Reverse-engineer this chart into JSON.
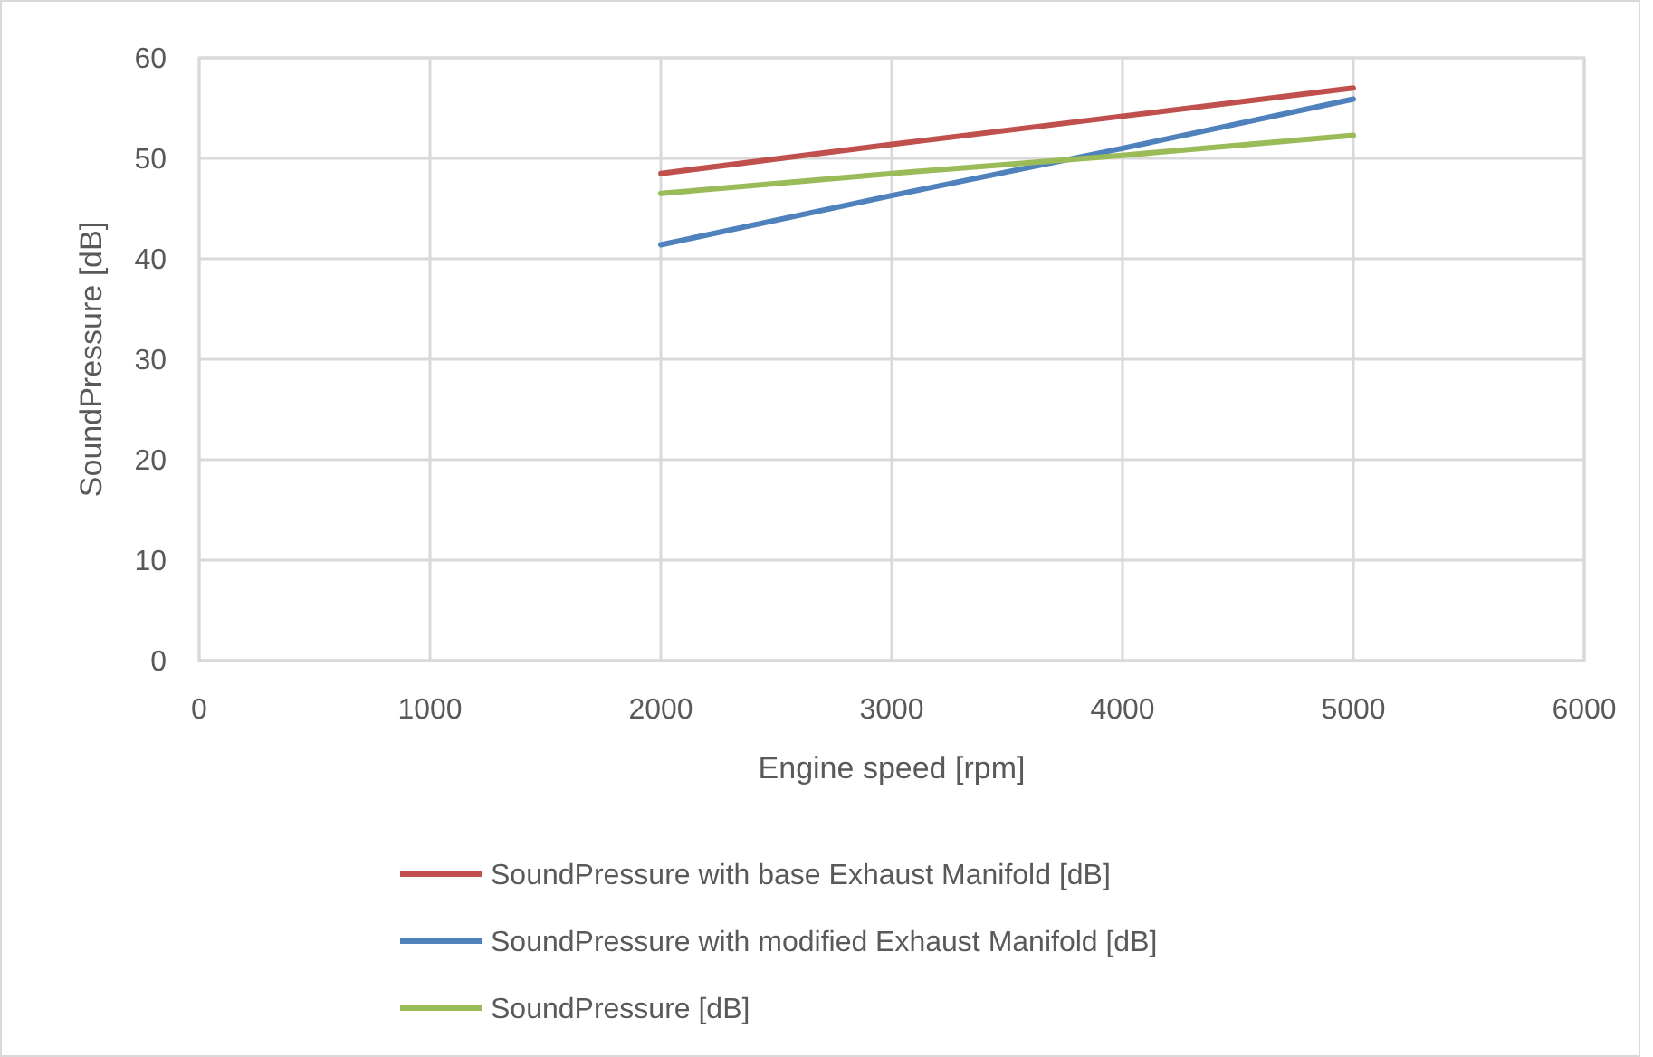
{
  "chart_data": {
    "type": "line",
    "xlabel": "Engine speed [rpm]",
    "ylabel": "SoundPressure [dB]",
    "xlim": [
      0,
      6000
    ],
    "xticks": [
      0,
      1000,
      2000,
      3000,
      4000,
      5000,
      6000
    ],
    "ylim": [
      0,
      60
    ],
    "yticks": [
      0,
      10,
      20,
      30,
      40,
      50,
      60
    ],
    "grid": true,
    "legend": "bottom",
    "marker": "none",
    "line_style": "solid",
    "x": [
      2000,
      3000,
      4000,
      5000
    ],
    "series": [
      {
        "name": "SoundPressure with base Exhaust Manifold [dB]",
        "color": "#c0504d",
        "values": [
          48.5,
          51.4,
          54.2,
          57.0
        ]
      },
      {
        "name": "SoundPressure with modified Exhaust Manifold [dB]",
        "color": "#4f81bd",
        "values": [
          41.4,
          46.3,
          51.0,
          55.9
        ]
      },
      {
        "name": "SoundPressure [dB]",
        "color": "#9bbb59",
        "values": [
          46.5,
          48.5,
          50.3,
          52.3
        ]
      }
    ]
  }
}
